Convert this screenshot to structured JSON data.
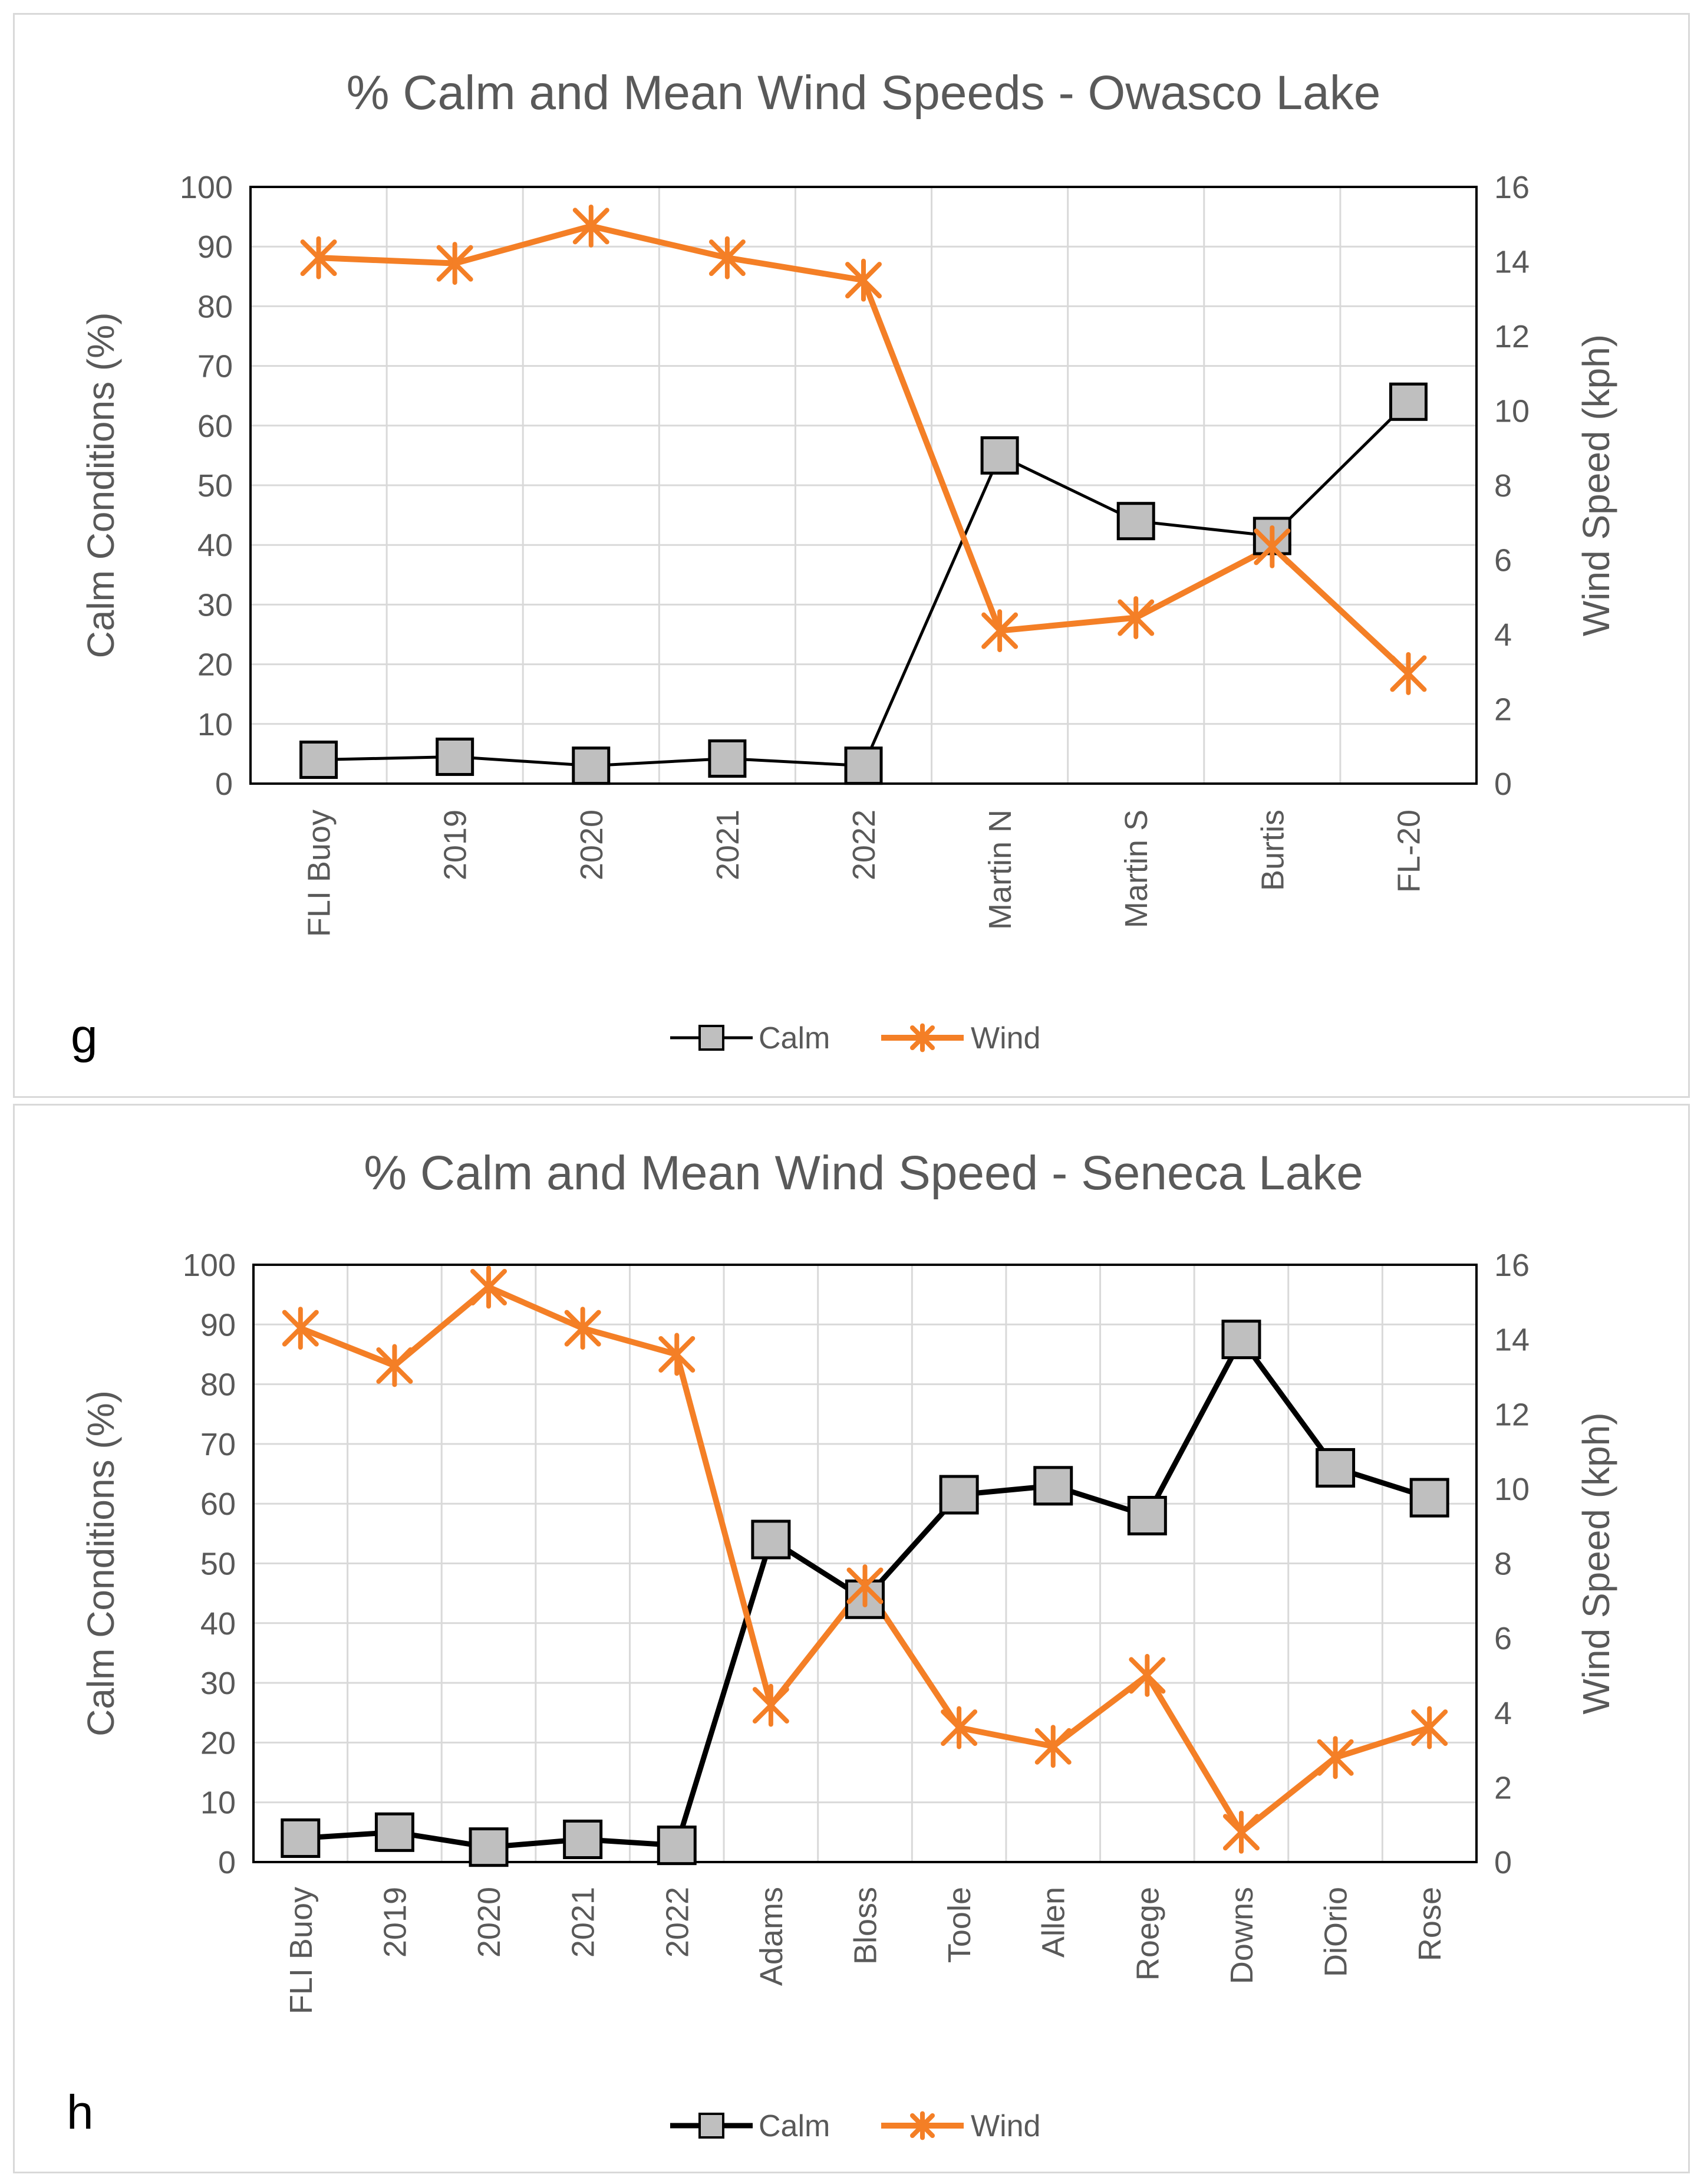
{
  "colors": {
    "calm": "#000000",
    "calm_marker_fill": "#bfbfbf",
    "wind": "#f47f26",
    "grid": "#d9d9d9",
    "text": "#595959"
  },
  "chart_data": [
    {
      "type": "line",
      "panel_label": "g",
      "title": "% Calm and Mean Wind Speeds - Owasco Lake",
      "categories": [
        "FLI Buoy",
        "2019",
        "2020",
        "2021",
        "2022",
        "Martin N",
        "Martin S",
        "Burtis",
        "FL-20"
      ],
      "ylabel": "Calm Conditions (%)",
      "y2label": "Wind Speed (kph)",
      "ylim": [
        0,
        100
      ],
      "y2lim": [
        0,
        16
      ],
      "yticks": [
        "0",
        "10",
        "20",
        "30",
        "40",
        "50",
        "60",
        "70",
        "80",
        "90",
        "100"
      ],
      "y2ticks": [
        "0",
        "2",
        "4",
        "6",
        "8",
        "10",
        "12",
        "14",
        "16"
      ],
      "grid": true,
      "legend": "bottom-center",
      "series": [
        {
          "name": "Calm",
          "axis": "left",
          "marker": "square",
          "values": [
            4,
            4.5,
            3,
            4.2,
            3,
            55,
            44,
            41.5,
            64
          ]
        },
        {
          "name": "Wind",
          "axis": "right",
          "marker": "asterisk",
          "values": [
            14.1,
            13.95,
            14.95,
            14.1,
            13.5,
            4.1,
            4.45,
            6.35,
            2.95
          ]
        }
      ]
    },
    {
      "type": "line",
      "panel_label": "h",
      "title": "% Calm and Mean Wind Speed - Seneca Lake",
      "categories": [
        "FLI Buoy",
        "2019",
        "2020",
        "2021",
        "2022",
        "Adams",
        "Bloss",
        "Toole",
        "Allen",
        "Roege",
        "Downs",
        "DiOrio",
        "Rose"
      ],
      "ylabel": "Calm Conditions (%)",
      "y2label": "Wind Speed (kph)",
      "ylim": [
        0,
        100
      ],
      "y2lim": [
        0,
        16
      ],
      "yticks": [
        "0",
        "10",
        "20",
        "30",
        "40",
        "50",
        "60",
        "70",
        "80",
        "90",
        "100"
      ],
      "y2ticks": [
        "0",
        "2",
        "4",
        "6",
        "8",
        "10",
        "12",
        "14",
        "16"
      ],
      "grid": true,
      "legend": "bottom-center",
      "series": [
        {
          "name": "Calm",
          "axis": "left",
          "marker": "square",
          "values": [
            4,
            5,
            2.5,
            3.8,
            2.8,
            54,
            44,
            61.5,
            63,
            58,
            87.5,
            66,
            61
          ]
        },
        {
          "name": "Wind",
          "axis": "right",
          "marker": "asterisk",
          "values": [
            14.3,
            13.3,
            15.4,
            14.3,
            13.6,
            4.2,
            7.4,
            3.6,
            3.1,
            5.0,
            0.8,
            2.8,
            3.6
          ]
        }
      ]
    }
  ]
}
